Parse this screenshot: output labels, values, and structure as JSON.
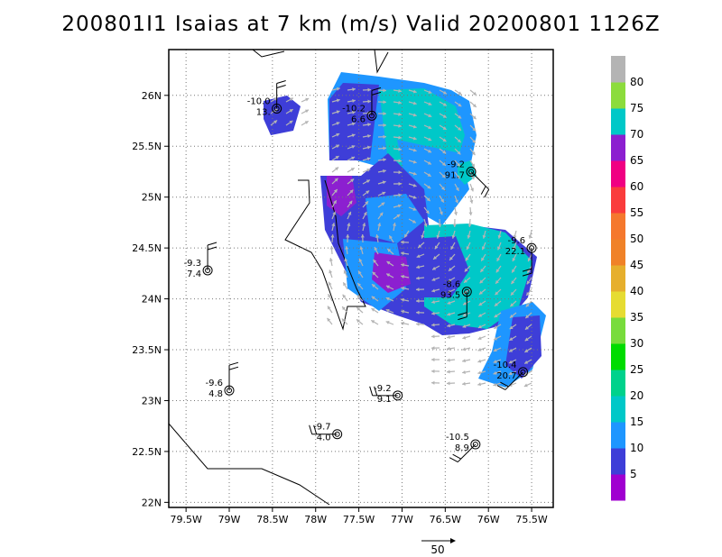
{
  "title": "200801I1 Isaias at 7 km (m/s) Valid 20200801 1126Z",
  "chart_data": {
    "type": "heatmap",
    "title": "200801I1 Isaias at 7 km (m/s) Valid 20200801 1126Z",
    "x_axis": {
      "type": "longitude",
      "range": [
        -79.7,
        -75.25
      ],
      "ticks": [
        -79.5,
        -79,
        -78.5,
        -78,
        -77.5,
        -77,
        -76.5,
        -76,
        -75.5
      ],
      "tick_labels": [
        "79.5W",
        "79W",
        "78.5W",
        "78W",
        "77.5W",
        "77W",
        "76.5W",
        "76W",
        "75.5W"
      ]
    },
    "y_axis": {
      "type": "latitude",
      "range": [
        21.95,
        26.45
      ],
      "ticks": [
        22,
        22.5,
        23,
        23.5,
        24,
        24.5,
        25,
        25.5,
        26
      ],
      "tick_labels": [
        "22N",
        "22.5N",
        "23N",
        "23.5N",
        "24N",
        "24.5N",
        "25N",
        "25.5N",
        "26N"
      ]
    },
    "grid": true,
    "colorbar": {
      "labels": [
        "5",
        "10",
        "15",
        "20",
        "25",
        "30",
        "35",
        "40",
        "45",
        "50",
        "55",
        "60",
        "65",
        "70",
        "75",
        "80"
      ],
      "bins": [
        {
          "max": 5,
          "color": "#a000d0"
        },
        {
          "max": 10,
          "color": "#3e3ed8"
        },
        {
          "max": 15,
          "color": "#1e96ff"
        },
        {
          "max": 20,
          "color": "#00c8c8"
        },
        {
          "max": 25,
          "color": "#00d28c"
        },
        {
          "max": 30,
          "color": "#00dc00"
        },
        {
          "max": 35,
          "color": "#78dc3c"
        },
        {
          "max": 40,
          "color": "#e6dc32"
        },
        {
          "max": 45,
          "color": "#e6af2d"
        },
        {
          "max": 50,
          "color": "#f08228"
        },
        {
          "max": 55,
          "color": "#f5782d"
        },
        {
          "max": 60,
          "color": "#fa3c3c"
        },
        {
          "max": 65,
          "color": "#f00082"
        },
        {
          "max": 70,
          "color": "#8c1fd0"
        },
        {
          "max": 75,
          "color": "#00c8c8"
        },
        {
          "max": 80,
          "color": "#8cdc3c"
        },
        {
          "max": 85,
          "color": "#b4b4b4"
        }
      ]
    },
    "reference_vector": {
      "label": "50",
      "value": 50
    },
    "stations": [
      {
        "lon": -78.45,
        "lat": 25.87,
        "temp": "-10.0",
        "speed": "13.",
        "barb": "n"
      },
      {
        "lon": -77.35,
        "lat": 25.8,
        "temp": "-10.2",
        "speed": "6.6",
        "barb": "n"
      },
      {
        "lon": -76.2,
        "lat": 25.25,
        "temp": "-9.2",
        "speed": "91.7",
        "barb": "se"
      },
      {
        "lon": -75.5,
        "lat": 24.5,
        "temp": "-9.6",
        "speed": "22.1",
        "barb": "s"
      },
      {
        "lon": -79.25,
        "lat": 24.28,
        "temp": "-9.3",
        "speed": "7.4",
        "barb": "n"
      },
      {
        "lon": -76.25,
        "lat": 24.07,
        "temp": "-8.6",
        "speed": "93.5",
        "barb": "s"
      },
      {
        "lon": -75.6,
        "lat": 23.28,
        "temp": "-10.4",
        "speed": "20.7",
        "barb": "sw"
      },
      {
        "lon": -79.0,
        "lat": 23.1,
        "temp": "-9.6",
        "speed": "4.8",
        "barb": "n"
      },
      {
        "lon": -77.05,
        "lat": 23.05,
        "temp": "-9.2",
        "speed": "9.1",
        "barb": "w"
      },
      {
        "lon": -77.75,
        "lat": 22.67,
        "temp": "-9.7",
        "speed": "4.0",
        "barb": "w"
      },
      {
        "lon": -76.15,
        "lat": 22.57,
        "temp": "-10.5",
        "speed": "8.9",
        "barb": "sw"
      }
    ]
  }
}
